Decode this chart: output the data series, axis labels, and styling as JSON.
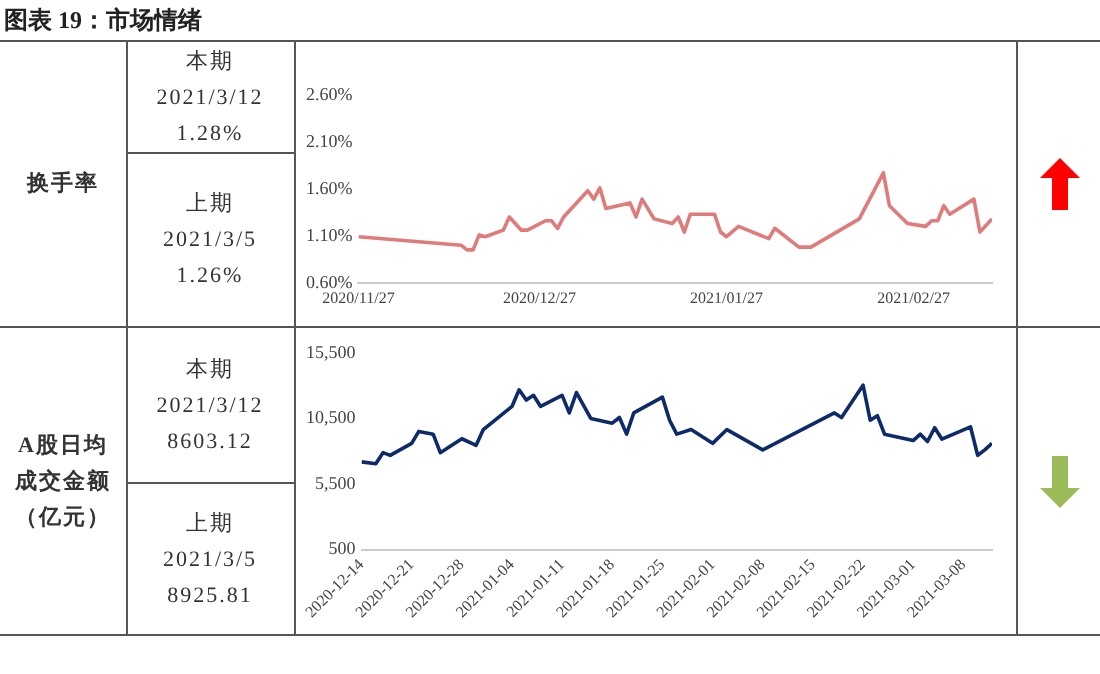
{
  "chart_data": [
    {
      "type": "line",
      "title": "图表 19：市场情绪",
      "annotations": [
        "换手率",
        "本期",
        "2021/3/12",
        "1.28%",
        "上期",
        "2021/3/5",
        "1.26%"
      ],
      "x": [
        "2020-11-27",
        "2020-12-14",
        "2020-12-15",
        "2020-12-16",
        "2020-12-17",
        "2020-12-18",
        "2020-12-21",
        "2020-12-22",
        "2020-12-24",
        "2020-12-25",
        "2020-12-28",
        "2020-12-29",
        "2020-12-30",
        "2020-12-31",
        "2021-01-04",
        "2021-01-05",
        "2021-01-06",
        "2021-01-07",
        "2021-01-11",
        "2021-01-12",
        "2021-01-13",
        "2021-01-15",
        "2021-01-18",
        "2021-01-19",
        "2021-01-20",
        "2021-01-21",
        "2021-01-25",
        "2021-01-26",
        "2021-01-27",
        "2021-01-29",
        "2021-02-03",
        "2021-02-04",
        "2021-02-08",
        "2021-02-10",
        "2021-02-18",
        "2021-02-22",
        "2021-02-23",
        "2021-02-26",
        "2021-03-01",
        "2021-03-02",
        "2021-03-03",
        "2021-03-04",
        "2021-03-05",
        "2021-03-09",
        "2021-03-10",
        "2021-03-12"
      ],
      "series": [
        {
          "color": "#e07b7b",
          "values": [
            1.09,
            1.0,
            0.95,
            0.95,
            1.11,
            1.09,
            1.16,
            1.3,
            1.16,
            1.16,
            1.26,
            1.26,
            1.18,
            1.3,
            1.58,
            1.49,
            1.61,
            1.39,
            1.45,
            1.3,
            1.49,
            1.28,
            1.23,
            1.3,
            1.14,
            1.33,
            1.33,
            1.14,
            1.09,
            1.2,
            1.07,
            1.18,
            0.98,
            0.98,
            1.28,
            1.77,
            1.42,
            1.23,
            1.2,
            1.26,
            1.26,
            1.42,
            1.33,
            1.49,
            1.14,
            1.28
          ]
        }
      ],
      "xlim": [
        "2020-11-27",
        "2021-03-12"
      ],
      "xticks": [
        {
          "value": "2020-11-27",
          "label": "2020/11/27"
        },
        {
          "value": "2020-12-27",
          "label": "2020/12/27"
        },
        {
          "value": "2021-01-27",
          "label": "2021/01/27"
        },
        {
          "value": "2021-02-27",
          "label": "2021/02/27"
        }
      ],
      "ylim": [
        0.6,
        2.6
      ],
      "yticks": [
        {
          "value": 0.6,
          "label": "0.60%"
        },
        {
          "value": 1.1,
          "label": "1.10%"
        },
        {
          "value": 1.6,
          "label": "1.60%"
        },
        {
          "value": 2.1,
          "label": "2.10%"
        },
        {
          "value": 2.6,
          "label": "2.60%"
        }
      ],
      "marker": "none",
      "line_style": "solid"
    },
    {
      "type": "line",
      "annotations": [
        "A股日均成交金额（亿元）",
        "本期",
        "2021/3/12",
        "8603.12",
        "上期",
        "2021/3/5",
        "8925.81"
      ],
      "x": [
        "2020-12-14",
        "2020-12-16",
        "2020-12-17",
        "2020-12-18",
        "2020-12-21",
        "2020-12-22",
        "2020-12-24",
        "2020-12-25",
        "2020-12-28",
        "2020-12-30",
        "2020-12-31",
        "2021-01-04",
        "2021-01-05",
        "2021-01-06",
        "2021-01-07",
        "2021-01-08",
        "2021-01-11",
        "2021-01-12",
        "2021-01-13",
        "2021-01-15",
        "2021-01-18",
        "2021-01-19",
        "2021-01-20",
        "2021-01-21",
        "2021-01-25",
        "2021-01-26",
        "2021-01-27",
        "2021-01-29",
        "2021-02-01",
        "2021-02-03",
        "2021-02-08",
        "2021-02-18",
        "2021-02-19",
        "2021-02-22",
        "2021-02-23",
        "2021-02-24",
        "2021-02-25",
        "2021-03-01",
        "2021-03-02",
        "2021-03-03",
        "2021-03-04",
        "2021-03-05",
        "2021-03-09",
        "2021-03-10",
        "2021-03-11",
        "2021-03-12"
      ],
      "series": [
        {
          "color": "#0d2a6b",
          "values": [
            7190,
            7050,
            7890,
            7680,
            8600,
            9510,
            9300,
            7890,
            8950,
            8450,
            9650,
            11410,
            12680,
            11900,
            12260,
            11410,
            12260,
            10920,
            12470,
            10500,
            10140,
            10570,
            9300,
            10920,
            12120,
            10360,
            9300,
            9650,
            8600,
            9650,
            8100,
            10920,
            10570,
            13030,
            10360,
            10710,
            9300,
            8810,
            9300,
            8740,
            9790,
            8925,
            9860,
            7680,
            8100,
            8603
          ]
        }
      ],
      "xlim": [
        "2020-12-14",
        "2021-03-12"
      ],
      "xticks": [
        "2020-12-14",
        "2020-12-21",
        "2020-12-28",
        "2021-01-04",
        "2021-01-11",
        "2021-01-18",
        "2021-01-25",
        "2021-02-01",
        "2021-02-08",
        "2021-02-15",
        "2021-02-22",
        "2021-03-01",
        "2021-03-08"
      ],
      "ylim": [
        500,
        15500
      ],
      "yticks": [
        500,
        {
          "value": 5500,
          "label": "5,500"
        },
        {
          "value": 10500,
          "label": "10,500"
        },
        {
          "value": 15500,
          "label": "15,500"
        }
      ],
      "marker": "none",
      "line_style": "solid"
    }
  ]
}
